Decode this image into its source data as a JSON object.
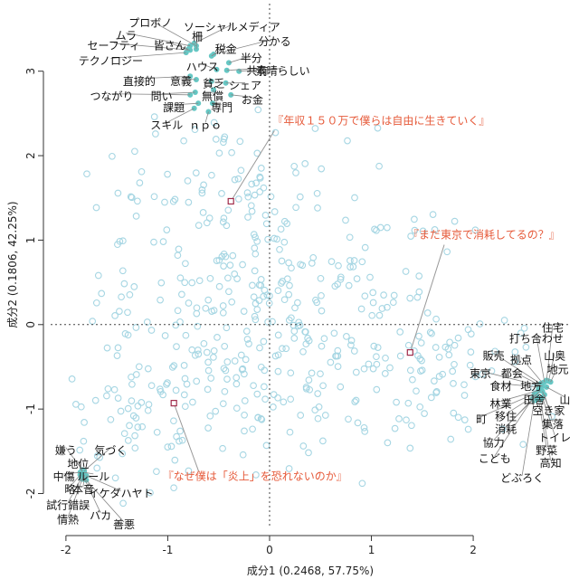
{
  "chart_data": {
    "type": "scatter",
    "title": "",
    "xlabel": "成分1 (0.2468, 57.75%)",
    "ylabel": "成分2 (0.1806, 42.25%)",
    "xlim": [
      -2.15,
      2.95
    ],
    "ylim": [
      -2.38,
      3.8
    ],
    "xticks": [
      -2,
      -1,
      0,
      1,
      2
    ],
    "yticks": [
      -2,
      -1,
      0,
      1,
      2,
      3
    ],
    "grid": false,
    "reference_lines": {
      "x": 0,
      "y": 0,
      "style": "dotted"
    },
    "colors": {
      "background_points": "#a6d6e3",
      "term_points": "#66c7c4",
      "doc_marker": "#a02c4b",
      "doc_label": "#e65a3a"
    },
    "term_groups": [
      {
        "name": "upper-cluster",
        "terms": [
          {
            "label": "プロボノ",
            "x": -0.72,
            "y": 3.3,
            "lx": -1.17,
            "ly": 3.57
          },
          {
            "label": "ソーシャルメディア",
            "x": -0.74,
            "y": 3.33,
            "lx": -0.37,
            "ly": 3.52
          },
          {
            "label": "ムラ",
            "x": -0.78,
            "y": 3.3,
            "lx": -1.41,
            "ly": 3.42
          },
          {
            "label": "柵",
            "x": -0.72,
            "y": 3.26,
            "lx": -0.71,
            "ly": 3.41
          },
          {
            "label": "分かる",
            "x": -0.55,
            "y": 3.2,
            "lx": 0.05,
            "ly": 3.35
          },
          {
            "label": "セーフティ",
            "x": -0.78,
            "y": 3.25,
            "lx": -1.53,
            "ly": 3.3
          },
          {
            "label": "皆さん",
            "x": -0.8,
            "y": 3.26,
            "lx": -0.98,
            "ly": 3.3
          },
          {
            "label": "税金",
            "x": -0.57,
            "y": 3.18,
            "lx": -0.43,
            "ly": 3.26
          },
          {
            "label": "半分",
            "x": -0.4,
            "y": 3.1,
            "lx": -0.18,
            "ly": 3.15
          },
          {
            "label": "テクノロジー",
            "x": -0.82,
            "y": 3.22,
            "lx": -1.56,
            "ly": 3.12
          },
          {
            "label": "ハウス",
            "x": -0.52,
            "y": 3.02,
            "lx": -0.66,
            "ly": 3.05
          },
          {
            "label": "共有",
            "x": -0.42,
            "y": 3.01,
            "lx": -0.12,
            "ly": 3.0
          },
          {
            "label": "素晴らしい",
            "x": -0.3,
            "y": 3.0,
            "lx": 0.13,
            "ly": 3.0
          },
          {
            "label": "直接的",
            "x": -0.78,
            "y": 2.94,
            "lx": -1.28,
            "ly": 2.88
          },
          {
            "label": "意義",
            "x": -0.72,
            "y": 2.9,
            "lx": -0.87,
            "ly": 2.88
          },
          {
            "label": "貧乏",
            "x": -0.57,
            "y": 2.88,
            "lx": -0.55,
            "ly": 2.85
          },
          {
            "label": "シェア",
            "x": -0.43,
            "y": 2.86,
            "lx": -0.24,
            "ly": 2.83
          },
          {
            "label": "つながり",
            "x": -0.78,
            "y": 2.72,
            "lx": -1.55,
            "ly": 2.7
          },
          {
            "label": "問い",
            "x": -0.73,
            "y": 2.75,
            "lx": -1.06,
            "ly": 2.7
          },
          {
            "label": "無償",
            "x": -0.55,
            "y": 2.78,
            "lx": -0.56,
            "ly": 2.7
          },
          {
            "label": "お金",
            "x": -0.38,
            "y": 2.72,
            "lx": -0.17,
            "ly": 2.66
          },
          {
            "label": "課題",
            "x": -0.7,
            "y": 2.62,
            "lx": -0.94,
            "ly": 2.57
          },
          {
            "label": "専門",
            "x": -0.56,
            "y": 2.62,
            "lx": -0.47,
            "ly": 2.57
          },
          {
            "label": "スキル",
            "x": -0.74,
            "y": 2.56,
            "lx": -1.01,
            "ly": 2.36
          },
          {
            "label": "ｎｐｏ",
            "x": -0.6,
            "y": 2.52,
            "lx": -0.63,
            "ly": 2.36
          }
        ]
      },
      {
        "name": "right-cluster",
        "terms": [
          {
            "label": "住宅",
            "x": 2.72,
            "y": -0.66,
            "lx": 2.78,
            "ly": -0.04
          },
          {
            "label": "打ち合わせ",
            "x": 2.7,
            "y": -0.68,
            "lx": 2.62,
            "ly": -0.17
          },
          {
            "label": "販売",
            "x": 2.66,
            "y": -0.7,
            "lx": 2.2,
            "ly": -0.37
          },
          {
            "label": "拠点",
            "x": 2.68,
            "y": -0.69,
            "lx": 2.47,
            "ly": -0.42
          },
          {
            "label": "山奥",
            "x": 2.74,
            "y": -0.67,
            "lx": 2.8,
            "ly": -0.37
          },
          {
            "label": "地元",
            "x": 2.76,
            "y": -0.68,
            "lx": 2.83,
            "ly": -0.53
          },
          {
            "label": "東京",
            "x": 2.64,
            "y": -0.72,
            "lx": 2.07,
            "ly": -0.58
          },
          {
            "label": "都会",
            "x": 2.66,
            "y": -0.72,
            "lx": 2.38,
            "ly": -0.58
          },
          {
            "label": "食材",
            "x": 2.64,
            "y": -0.74,
            "lx": 2.27,
            "ly": -0.73
          },
          {
            "label": "地方",
            "x": 2.68,
            "y": -0.73,
            "lx": 2.57,
            "ly": -0.73
          },
          {
            "label": "山",
            "x": 2.72,
            "y": -0.74,
            "lx": 2.9,
            "ly": -0.89
          },
          {
            "label": "林業",
            "x": 2.64,
            "y": -0.78,
            "lx": 2.27,
            "ly": -0.94
          },
          {
            "label": "田舎",
            "x": 2.66,
            "y": -0.78,
            "lx": 2.6,
            "ly": -0.89
          },
          {
            "label": "空き家",
            "x": 2.68,
            "y": -0.79,
            "lx": 2.74,
            "ly": -1.02
          },
          {
            "label": "町",
            "x": 2.6,
            "y": -0.82,
            "lx": 2.08,
            "ly": -1.12
          },
          {
            "label": "移住",
            "x": 2.62,
            "y": -0.83,
            "lx": 2.32,
            "ly": -1.09
          },
          {
            "label": "集落",
            "x": 2.7,
            "y": -0.83,
            "lx": 2.78,
            "ly": -1.18
          },
          {
            "label": "消耗",
            "x": 2.62,
            "y": -0.85,
            "lx": 2.32,
            "ly": -1.24
          },
          {
            "label": "協力",
            "x": 2.6,
            "y": -0.86,
            "lx": 2.2,
            "ly": -1.4
          },
          {
            "label": "トイレ",
            "x": 2.68,
            "y": -0.86,
            "lx": 2.8,
            "ly": -1.34
          },
          {
            "label": "野菜",
            "x": 2.64,
            "y": -0.88,
            "lx": 2.72,
            "ly": -1.49
          },
          {
            "label": "こども",
            "x": 2.58,
            "y": -0.88,
            "lx": 2.21,
            "ly": -1.59
          },
          {
            "label": "高知",
            "x": 2.66,
            "y": -0.89,
            "lx": 2.76,
            "ly": -1.64
          },
          {
            "label": "どぶろく",
            "x": 2.6,
            "y": -0.9,
            "lx": 2.48,
            "ly": -1.82
          }
        ]
      },
      {
        "name": "lower-left-cluster",
        "terms": [
          {
            "label": "嫌う",
            "x": -1.84,
            "y": -1.72,
            "lx": -2.0,
            "ly": -1.49
          },
          {
            "label": "気づく",
            "x": -1.82,
            "y": -1.73,
            "lx": -1.56,
            "ly": -1.49
          },
          {
            "label": "地位",
            "x": -1.84,
            "y": -1.74,
            "lx": -1.88,
            "ly": -1.65
          },
          {
            "label": "中傷",
            "x": -1.86,
            "y": -1.75,
            "lx": -2.02,
            "ly": -1.8
          },
          {
            "label": "ルール",
            "x": -1.82,
            "y": -1.75,
            "lx": -1.73,
            "ly": -1.8
          },
          {
            "label": "略",
            "x": -1.86,
            "y": -1.78,
            "lx": -1.96,
            "ly": -1.95
          },
          {
            "label": "本音",
            "x": -1.82,
            "y": -1.78,
            "lx": -1.83,
            "ly": -1.95
          },
          {
            "label": "イケダハヤト",
            "x": -1.8,
            "y": -1.79,
            "lx": -1.46,
            "ly": -2.0
          },
          {
            "label": "試行錯誤",
            "x": -1.85,
            "y": -1.82,
            "lx": -1.98,
            "ly": -2.14
          },
          {
            "label": "バカ",
            "x": -1.82,
            "y": -1.82,
            "lx": -1.66,
            "ly": -2.26
          },
          {
            "label": "情熱",
            "x": -1.84,
            "y": -1.83,
            "lx": -1.98,
            "ly": -2.31
          },
          {
            "label": "善悪",
            "x": -1.8,
            "y": -1.84,
            "lx": -1.43,
            "ly": -2.37
          }
        ]
      }
    ],
    "documents": [
      {
        "label": "『年収１５０万で僕らは自由に生きていく』",
        "x": -0.38,
        "y": 1.46,
        "lx": 0.03,
        "ly": 2.37
      },
      {
        "label": "『まだ東京で消耗してるの？』",
        "x": 1.38,
        "y": -0.33,
        "lx": 1.36,
        "ly": 1.02
      },
      {
        "label": "『なぜ僕は「炎上」を恐れないのか』",
        "x": -0.94,
        "y": -0.93,
        "lx": -1.05,
        "ly": -1.84
      }
    ],
    "background_points_count": 520
  }
}
